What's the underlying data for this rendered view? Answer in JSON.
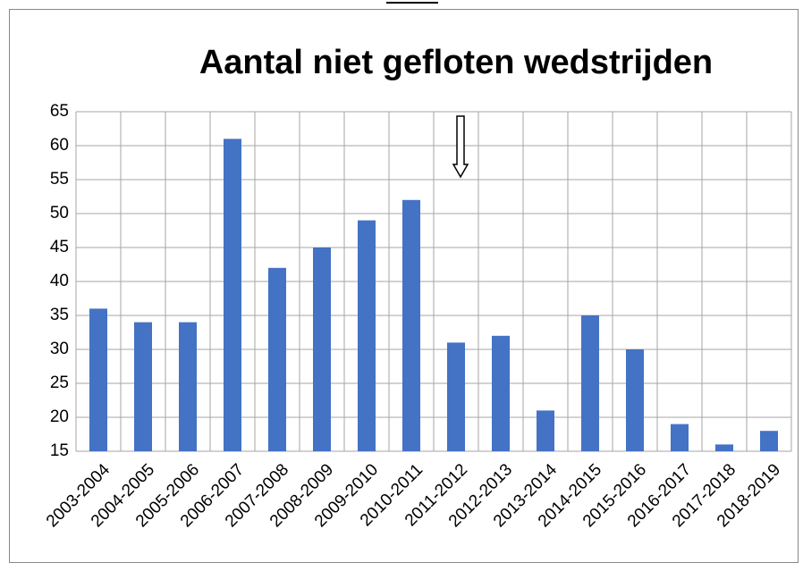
{
  "chart_data": {
    "type": "bar",
    "title": "Aantal niet gefloten wedstrijden",
    "categories": [
      "2003-2004",
      "2004-2005",
      "2005-2006",
      "2006-2007",
      "2007-2008",
      "2008-2009",
      "2009-2010",
      "2010-2011",
      "2011-2012",
      "2012-2013",
      "2013-2014",
      "2014-2015",
      "2015-2016",
      "2016-2017",
      "2017-2018",
      "2018-2019"
    ],
    "values": [
      36,
      34,
      34,
      61,
      42,
      45,
      49,
      52,
      31,
      32,
      21,
      35,
      30,
      19,
      16,
      18
    ],
    "color": "#4472c4",
    "ylim": [
      15,
      65
    ],
    "yticks": [
      15,
      20,
      25,
      30,
      35,
      40,
      45,
      50,
      55,
      60,
      65
    ],
    "grid": true
  }
}
